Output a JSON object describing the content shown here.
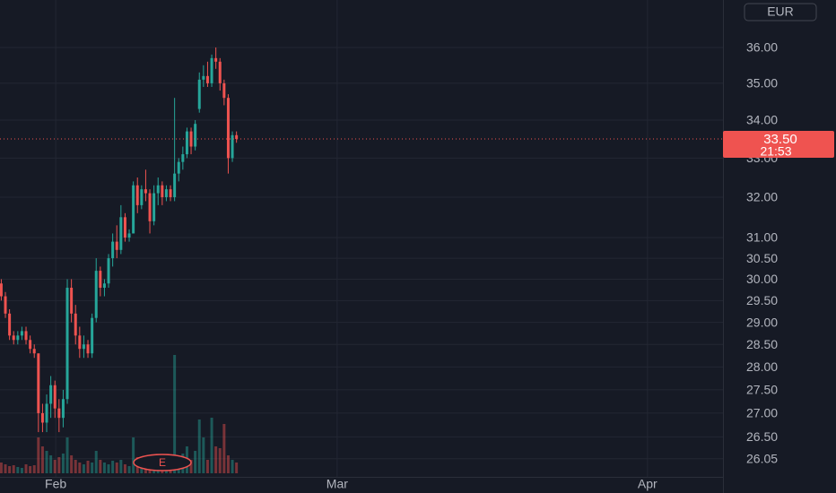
{
  "chart_data": {
    "type": "candlestick",
    "currency": "EUR",
    "countdown": "21:53",
    "last_price_label": "33.50",
    "earnings_label": "E",
    "up_color": "#26a69a",
    "down_color": "#ef5350",
    "log_y": true,
    "grid": true,
    "open": [
      29.9,
      29.6,
      29.2,
      28.7,
      28.6,
      28.7,
      28.8,
      28.6,
      28.4,
      28.3,
      27.0,
      26.8,
      27.2,
      27.6,
      27.1,
      26.9,
      27.3,
      29.8,
      29.2,
      28.7,
      28.4,
      28.5,
      28.3,
      29.1,
      30.2,
      29.8,
      29.9,
      30.5,
      30.9,
      30.7,
      31.5,
      31.0,
      31.1,
      32.3,
      31.8,
      32.2,
      32.1,
      31.4,
      32.1,
      32.3,
      32.0,
      32.2,
      32.0,
      32.6,
      32.9,
      33.1,
      33.7,
      33.3,
      34.3,
      35.1,
      35.2,
      35.0,
      35.7,
      35.6,
      35.0,
      34.6,
      33.0,
      33.6
    ],
    "high": [
      30.0,
      29.7,
      29.3,
      28.8,
      28.8,
      28.9,
      28.9,
      28.7,
      28.5,
      28.3,
      27.2,
      27.4,
      27.8,
      27.7,
      27.3,
      27.5,
      30.0,
      30.0,
      29.4,
      28.9,
      28.7,
      28.6,
      29.2,
      30.5,
      30.3,
      30.0,
      30.6,
      31.1,
      31.3,
      31.8,
      31.6,
      31.2,
      32.4,
      32.5,
      32.3,
      32.7,
      32.2,
      32.3,
      32.5,
      32.4,
      32.3,
      32.3,
      34.6,
      33.0,
      33.3,
      33.8,
      33.8,
      34.0,
      35.3,
      35.5,
      35.6,
      35.8,
      36.0,
      35.7,
      35.1,
      34.7,
      33.7,
      33.7
    ],
    "low": [
      29.5,
      29.1,
      28.6,
      28.5,
      28.5,
      28.6,
      28.5,
      28.3,
      28.2,
      26.6,
      26.6,
      26.6,
      26.9,
      26.9,
      26.6,
      26.7,
      27.2,
      29.0,
      28.5,
      28.2,
      28.2,
      28.2,
      28.2,
      29.0,
      29.6,
      29.6,
      29.8,
      30.3,
      30.5,
      30.6,
      30.9,
      30.9,
      31.1,
      31.6,
      31.7,
      31.9,
      31.1,
      31.3,
      31.8,
      31.8,
      31.9,
      31.9,
      31.9,
      32.4,
      32.7,
      33.0,
      33.1,
      33.2,
      34.2,
      34.9,
      34.9,
      34.9,
      35.4,
      34.8,
      34.4,
      32.6,
      32.9,
      33.4
    ],
    "close": [
      29.6,
      29.2,
      28.7,
      28.6,
      28.7,
      28.8,
      28.6,
      28.4,
      28.3,
      27.0,
      26.8,
      27.2,
      27.6,
      27.1,
      26.9,
      27.3,
      29.8,
      29.2,
      28.7,
      28.4,
      28.5,
      28.3,
      29.1,
      30.2,
      29.8,
      29.9,
      30.5,
      30.9,
      30.7,
      31.5,
      31.0,
      31.1,
      32.3,
      31.8,
      32.2,
      32.1,
      31.4,
      32.1,
      32.3,
      32.0,
      32.2,
      32.0,
      32.6,
      32.9,
      33.1,
      33.7,
      33.3,
      33.9,
      35.1,
      35.2,
      35.0,
      35.7,
      35.6,
      35.0,
      34.6,
      33.0,
      33.6,
      33.5
    ],
    "volume": [
      12,
      10,
      8,
      9,
      7,
      6,
      10,
      8,
      9,
      40,
      30,
      25,
      20,
      15,
      18,
      22,
      40,
      20,
      15,
      12,
      10,
      14,
      12,
      25,
      15,
      12,
      10,
      14,
      12,
      15,
      10,
      8,
      40,
      18,
      12,
      15,
      20,
      12,
      10,
      14,
      8,
      10,
      132,
      18,
      22,
      30,
      15,
      25,
      60,
      40,
      15,
      62,
      30,
      28,
      55,
      20,
      15,
      12
    ],
    "vlim": [
      0,
      150
    ],
    "xlim": [
      -0.2,
      175
    ],
    "xticks": [
      {
        "value": 13.3,
        "label": "Feb"
      },
      {
        "value": 81.5,
        "label": "Mar"
      },
      {
        "value": 156.7,
        "label": "Apr"
      }
    ],
    "ylim": [
      25.68,
      37.37
    ],
    "yticks": [
      26.05,
      {
        "value": 26.5,
        "label": "26.50"
      },
      {
        "value": 27,
        "label": "27.00"
      },
      {
        "value": 27.5,
        "label": "27.50"
      },
      {
        "value": 28,
        "label": "28.00"
      },
      {
        "value": 28.5,
        "label": "28.50"
      },
      {
        "value": 29,
        "label": "29.00"
      },
      {
        "value": 29.5,
        "label": "29.50"
      },
      {
        "value": 30,
        "label": "30.00"
      },
      {
        "value": 30.5,
        "label": "30.50"
      },
      {
        "value": 31,
        "label": "31.00"
      },
      {
        "value": 32,
        "label": "32.00"
      },
      {
        "value": 33,
        "label": "33.00"
      },
      {
        "value": 34,
        "label": "34.00"
      },
      {
        "value": 35,
        "label": "35.00"
      },
      {
        "value": 36,
        "label": "36.00"
      }
    ]
  }
}
